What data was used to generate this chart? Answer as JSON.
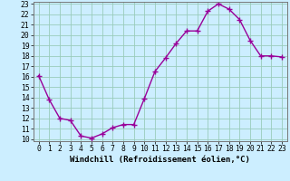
{
  "x": [
    0,
    1,
    2,
    3,
    4,
    5,
    6,
    7,
    8,
    9,
    10,
    11,
    12,
    13,
    14,
    15,
    16,
    17,
    18,
    19,
    20,
    21,
    22,
    23
  ],
  "y": [
    16.1,
    13.8,
    12.0,
    11.8,
    10.3,
    10.1,
    10.5,
    11.1,
    11.4,
    11.4,
    13.9,
    16.5,
    17.8,
    19.2,
    20.4,
    20.4,
    22.3,
    23.0,
    22.5,
    21.5,
    19.5,
    18.0,
    18.0,
    17.9
  ],
  "line_color": "#990099",
  "marker": "+",
  "background_color": "#cceeff",
  "grid_color": "#99ccbb",
  "xlabel": "Windchill (Refroidissement éolien,°C)",
  "ylabel": "",
  "ylim": [
    10,
    23
  ],
  "xlim": [
    -0.5,
    23.5
  ],
  "yticks": [
    10,
    11,
    12,
    13,
    14,
    15,
    16,
    17,
    18,
    19,
    20,
    21,
    22,
    23
  ],
  "xticks": [
    0,
    1,
    2,
    3,
    4,
    5,
    6,
    7,
    8,
    9,
    10,
    11,
    12,
    13,
    14,
    15,
    16,
    17,
    18,
    19,
    20,
    21,
    22,
    23
  ],
  "xlabel_fontsize": 6.5,
  "tick_fontsize": 5.8,
  "line_width": 1.0,
  "marker_size": 4
}
